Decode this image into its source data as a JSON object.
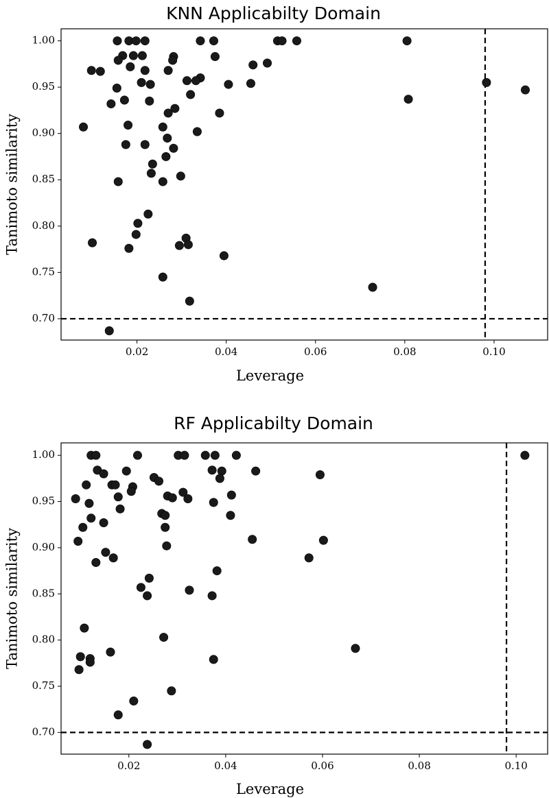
{
  "chart_data": [
    {
      "type": "scatter",
      "title": "KNN Applicabilty Domain",
      "xlabel": "Leverage",
      "ylabel": "Tanimoto similarity",
      "xlim": [
        0.003,
        0.112
      ],
      "ylim": [
        0.677,
        1.013
      ],
      "xticks": [
        0.02,
        0.04,
        0.06,
        0.08,
        0.1
      ],
      "xtick_labels": [
        "0.02",
        "0.04",
        "0.06",
        "0.08",
        "0.10"
      ],
      "yticks": [
        0.7,
        0.75,
        0.8,
        0.85,
        0.9,
        0.95,
        1.0
      ],
      "ytick_labels": [
        "0.70",
        "0.75",
        "0.80",
        "0.85",
        "0.90",
        "0.95",
        "1.00"
      ],
      "thresholds": {
        "x": 0.098,
        "y": 0.7
      },
      "grid": false,
      "color": "#1a1a1a",
      "points": [
        [
          0.0156,
          1.0
        ],
        [
          0.0182,
          1.0
        ],
        [
          0.0198,
          1.0
        ],
        [
          0.0218,
          1.0
        ],
        [
          0.0342,
          1.0
        ],
        [
          0.0372,
          1.0
        ],
        [
          0.0515,
          1.0
        ],
        [
          0.0525,
          1.0
        ],
        [
          0.0558,
          1.0
        ],
        [
          0.0805,
          1.0
        ],
        [
          0.0168,
          0.984
        ],
        [
          0.0192,
          0.984
        ],
        [
          0.0212,
          0.984
        ],
        [
          0.0282,
          0.983
        ],
        [
          0.0375,
          0.983
        ],
        [
          0.0158,
          0.979
        ],
        [
          0.028,
          0.979
        ],
        [
          0.046,
          0.974
        ],
        [
          0.0492,
          0.976
        ],
        [
          0.0185,
          0.972
        ],
        [
          0.0098,
          0.968
        ],
        [
          0.0118,
          0.967
        ],
        [
          0.0218,
          0.968
        ],
        [
          0.027,
          0.968
        ],
        [
          0.0342,
          0.96
        ],
        [
          0.0332,
          0.957
        ],
        [
          0.0312,
          0.957
        ],
        [
          0.021,
          0.955
        ],
        [
          0.023,
          0.953
        ],
        [
          0.0405,
          0.953
        ],
        [
          0.0455,
          0.954
        ],
        [
          0.0983,
          0.955
        ],
        [
          0.107,
          0.947
        ],
        [
          0.0155,
          0.949
        ],
        [
          0.032,
          0.942
        ],
        [
          0.0808,
          0.937
        ],
        [
          0.0172,
          0.936
        ],
        [
          0.0228,
          0.935
        ],
        [
          0.0142,
          0.932
        ],
        [
          0.0285,
          0.927
        ],
        [
          0.027,
          0.922
        ],
        [
          0.0385,
          0.922
        ],
        [
          0.018,
          0.909
        ],
        [
          0.008,
          0.907
        ],
        [
          0.0258,
          0.907
        ],
        [
          0.0335,
          0.902
        ],
        [
          0.0268,
          0.895
        ],
        [
          0.0175,
          0.888
        ],
        [
          0.0218,
          0.888
        ],
        [
          0.0282,
          0.884
        ],
        [
          0.0265,
          0.875
        ],
        [
          0.0235,
          0.867
        ],
        [
          0.0232,
          0.857
        ],
        [
          0.0298,
          0.854
        ],
        [
          0.0158,
          0.848
        ],
        [
          0.0258,
          0.848
        ],
        [
          0.0225,
          0.813
        ],
        [
          0.0202,
          0.803
        ],
        [
          0.031,
          0.787
        ],
        [
          0.0198,
          0.791
        ],
        [
          0.01,
          0.782
        ],
        [
          0.0295,
          0.779
        ],
        [
          0.0315,
          0.78
        ],
        [
          0.0182,
          0.776
        ],
        [
          0.0395,
          0.768
        ],
        [
          0.0258,
          0.745
        ],
        [
          0.0728,
          0.734
        ],
        [
          0.0318,
          0.719
        ],
        [
          0.0138,
          0.687
        ]
      ]
    },
    {
      "type": "scatter",
      "title": "RF Applicabilty Domain",
      "xlabel": "Leverage",
      "ylabel": "Tanimoto similarity",
      "xlim": [
        0.006,
        0.1065
      ],
      "ylim": [
        0.6765,
        1.0135
      ],
      "xticks": [
        0.02,
        0.04,
        0.06,
        0.08,
        0.1
      ],
      "xtick_labels": [
        "0.02",
        "0.04",
        "0.06",
        "0.08",
        "0.10"
      ],
      "yticks": [
        0.7,
        0.75,
        0.8,
        0.85,
        0.9,
        0.95,
        1.0
      ],
      "ytick_labels": [
        "0.70",
        "0.75",
        "0.80",
        "0.85",
        "0.90",
        "0.95",
        "1.00"
      ],
      "thresholds": {
        "x": 0.098,
        "y": 0.7
      },
      "grid": false,
      "color": "#1a1a1a",
      "points": [
        [
          0.0122,
          1.0
        ],
        [
          0.0132,
          1.0
        ],
        [
          0.0218,
          1.0
        ],
        [
          0.0302,
          1.0
        ],
        [
          0.0315,
          1.0
        ],
        [
          0.0358,
          1.0
        ],
        [
          0.0378,
          1.0
        ],
        [
          0.0422,
          1.0
        ],
        [
          0.1018,
          1.0
        ],
        [
          0.0135,
          0.984
        ],
        [
          0.0148,
          0.98
        ],
        [
          0.0195,
          0.983
        ],
        [
          0.0372,
          0.984
        ],
        [
          0.0392,
          0.983
        ],
        [
          0.0462,
          0.983
        ],
        [
          0.0595,
          0.979
        ],
        [
          0.0388,
          0.975
        ],
        [
          0.0252,
          0.976
        ],
        [
          0.0262,
          0.972
        ],
        [
          0.0112,
          0.968
        ],
        [
          0.0165,
          0.968
        ],
        [
          0.0172,
          0.968
        ],
        [
          0.0208,
          0.966
        ],
        [
          0.0205,
          0.961
        ],
        [
          0.0312,
          0.96
        ],
        [
          0.0412,
          0.957
        ],
        [
          0.009,
          0.953
        ],
        [
          0.0178,
          0.955
        ],
        [
          0.028,
          0.956
        ],
        [
          0.029,
          0.954
        ],
        [
          0.0322,
          0.953
        ],
        [
          0.0118,
          0.948
        ],
        [
          0.0375,
          0.949
        ],
        [
          0.0182,
          0.942
        ],
        [
          0.0268,
          0.937
        ],
        [
          0.0275,
          0.935
        ],
        [
          0.041,
          0.935
        ],
        [
          0.0122,
          0.932
        ],
        [
          0.0148,
          0.927
        ],
        [
          0.0105,
          0.922
        ],
        [
          0.0275,
          0.922
        ],
        [
          0.0455,
          0.909
        ],
        [
          0.0095,
          0.907
        ],
        [
          0.0602,
          0.908
        ],
        [
          0.0278,
          0.902
        ],
        [
          0.0152,
          0.895
        ],
        [
          0.0168,
          0.889
        ],
        [
          0.0572,
          0.889
        ],
        [
          0.0132,
          0.884
        ],
        [
          0.0382,
          0.875
        ],
        [
          0.0242,
          0.867
        ],
        [
          0.0225,
          0.857
        ],
        [
          0.0325,
          0.854
        ],
        [
          0.0238,
          0.848
        ],
        [
          0.0372,
          0.848
        ],
        [
          0.0108,
          0.813
        ],
        [
          0.0272,
          0.803
        ],
        [
          0.0668,
          0.791
        ],
        [
          0.0162,
          0.787
        ],
        [
          0.01,
          0.782
        ],
        [
          0.012,
          0.78
        ],
        [
          0.0375,
          0.779
        ],
        [
          0.012,
          0.776
        ],
        [
          0.0097,
          0.768
        ],
        [
          0.0288,
          0.745
        ],
        [
          0.021,
          0.734
        ],
        [
          0.0178,
          0.719
        ],
        [
          0.0238,
          0.687
        ]
      ]
    }
  ]
}
